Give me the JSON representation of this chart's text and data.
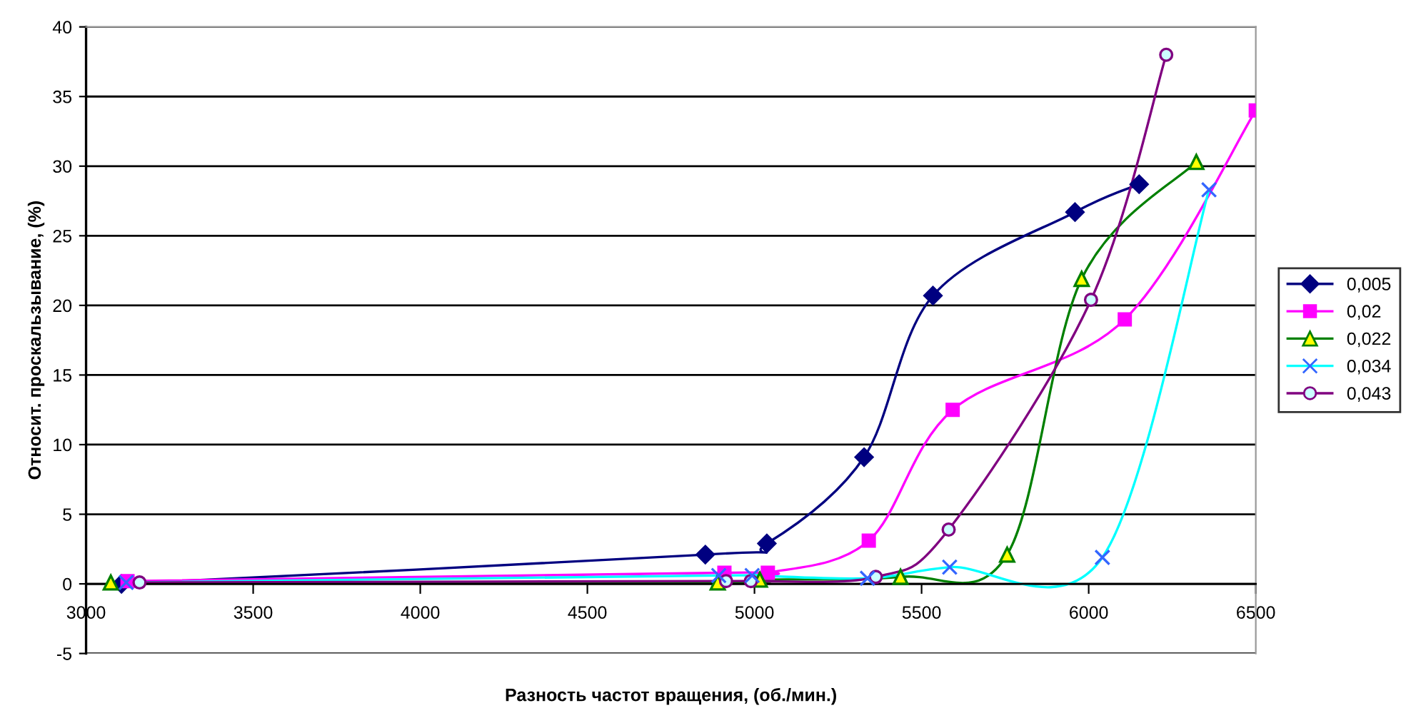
{
  "chart_data": {
    "type": "line",
    "xlabel": "Разность частот вращения, (об./мин.)",
    "ylabel": "Относит. проскальзывание, (%)",
    "xlim": [
      3000,
      6500
    ],
    "xticks": [
      3000,
      3500,
      4000,
      4500,
      5000,
      5500,
      6000,
      6500
    ],
    "ylim": [
      -5,
      40
    ],
    "yticks": [
      -5,
      0,
      5,
      10,
      15,
      20,
      25,
      30,
      35,
      40
    ],
    "grid": "y",
    "legend": "right",
    "series": [
      {
        "name": "0,005",
        "color": "#000080",
        "marker": "diamond",
        "x": [
          3106,
          4853,
          5037,
          5328,
          5534,
          5959,
          6151
        ],
        "values": [
          0.0,
          2.1,
          2.9,
          9.1,
          20.7,
          26.7,
          28.7
        ]
      },
      {
        "name": "0,02",
        "color": "#ff00ff",
        "marker": "square",
        "x": [
          3124,
          4910,
          5040,
          5342,
          5593,
          6108,
          6500
        ],
        "values": [
          0.2,
          0.8,
          0.8,
          3.1,
          12.5,
          19.0,
          34.0
        ]
      },
      {
        "name": "0,022",
        "color": "#008000",
        "marker": "triangle",
        "x": [
          3074,
          4890,
          5016,
          5437,
          5756,
          5979,
          6322
        ],
        "values": [
          0.1,
          0.1,
          0.3,
          0.5,
          2.1,
          21.9,
          30.3
        ]
      },
      {
        "name": "0,034",
        "color": "#00ffff",
        "marker": "cross",
        "x": [
          3120,
          4893,
          4993,
          5338,
          5584,
          6041,
          6360
        ],
        "values": [
          0.1,
          0.6,
          0.6,
          0.4,
          1.2,
          1.9,
          28.3
        ]
      },
      {
        "name": "0,043",
        "color": "#800080",
        "marker": "circle",
        "x": [
          3160,
          4915,
          4989,
          5363,
          5581,
          6007,
          6232
        ],
        "values": [
          0.1,
          0.2,
          0.2,
          0.5,
          3.9,
          20.4,
          38.0
        ]
      }
    ]
  }
}
